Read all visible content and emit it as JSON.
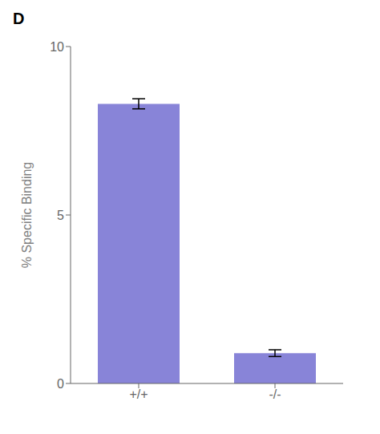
{
  "chart_data": {
    "type": "bar",
    "title": "D",
    "categories": [
      "+/+",
      "-/-"
    ],
    "values": [
      8.3,
      0.9
    ],
    "errors": [
      0.15,
      0.1
    ],
    "ylabel": "% Specific Binding",
    "ylim": [
      0,
      10
    ],
    "yticks": [
      0,
      5,
      10
    ],
    "grid": false
  }
}
